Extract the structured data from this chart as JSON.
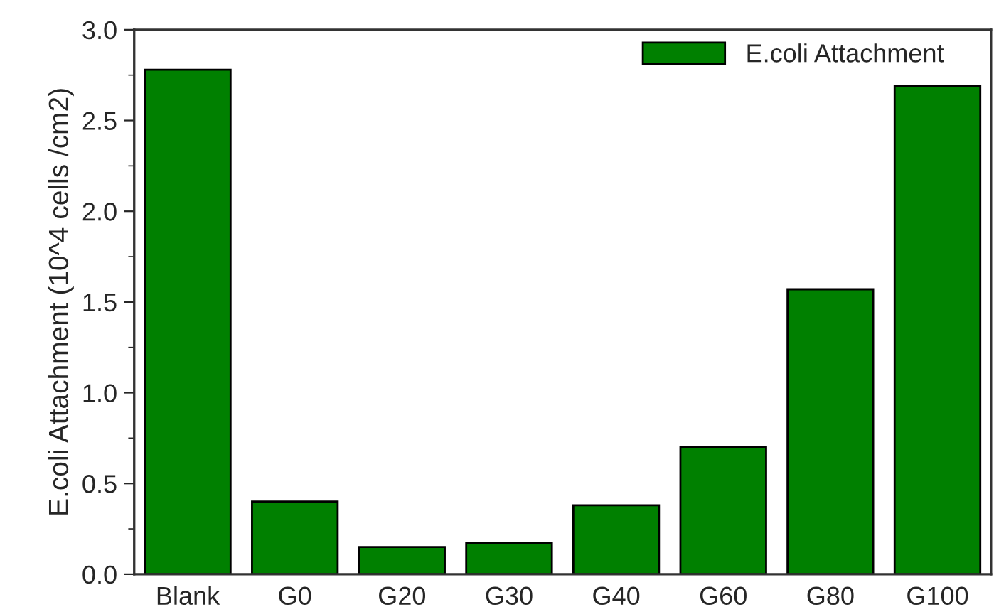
{
  "chart_data": {
    "type": "bar",
    "ylabel": "E.coli Attachment (10^4 cells /cm2)",
    "categories": [
      "Blank",
      "G0",
      "G20",
      "G30",
      "G40",
      "G60",
      "G80",
      "G100"
    ],
    "series": [
      {
        "name": "E.coli Attachment",
        "color": "#008000",
        "values": [
          2.78,
          0.4,
          0.15,
          0.17,
          0.38,
          0.7,
          1.57,
          2.69
        ]
      }
    ],
    "ylim": [
      0,
      3.0
    ],
    "yticks": [
      {
        "value": 0,
        "label": "0.0"
      },
      0.5,
      {
        "value": 1,
        "label": "1.0"
      },
      1.5,
      {
        "value": 2,
        "label": "2.0"
      },
      2.5,
      {
        "value": 3,
        "label": "3.0"
      }
    ],
    "grid": false,
    "legend": "top right"
  }
}
